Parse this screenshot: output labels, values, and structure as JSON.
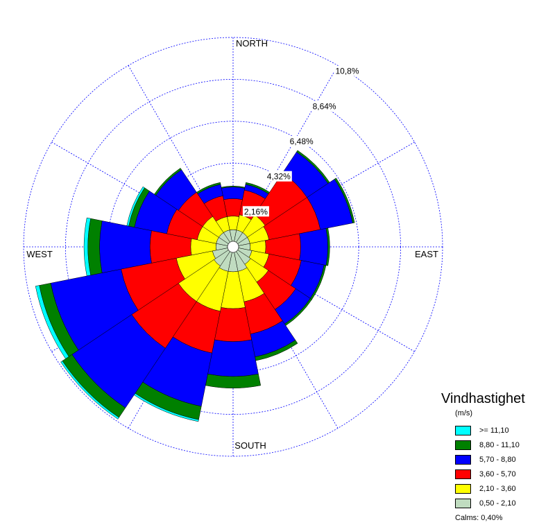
{
  "chart_data": {
    "type": "wind-rose",
    "directions": [
      "N",
      "NNE",
      "NE",
      "ENE",
      "E",
      "ESE",
      "SE",
      "SSE",
      "S",
      "SSW",
      "SW",
      "WSW",
      "W",
      "WNW",
      "NW",
      "NNW"
    ],
    "compass_labels": {
      "north": "NORTH",
      "east": "EAST",
      "south": "SOUTH",
      "west": "WEST"
    },
    "ring_ticks": [
      "2,16%",
      "4,32%",
      "6,48%",
      "8,64%",
      "10,8%"
    ],
    "ring_values": [
      2.16,
      4.32,
      6.48,
      8.64,
      10.8
    ],
    "r_max": 10.8,
    "legend_title": "Vindhastighet",
    "legend_unit": "(m/s)",
    "bins": [
      {
        "label": "0,50 - 2,10",
        "color": "#c0dcc0"
      },
      {
        "label": "2,10 - 3,60",
        "color": "#ffff00"
      },
      {
        "label": "3,60 - 5,70",
        "color": "#ff0000"
      },
      {
        "label": "5,70 - 8,80",
        "color": "#0000ff"
      },
      {
        "label": "8,80 - 11,10",
        "color": "#008000"
      },
      {
        "label": ">= 11,10",
        "color": "#00ffff"
      }
    ],
    "cumulative_percent": [
      [
        0.6,
        1.3,
        2.2,
        2.8,
        2.85,
        2.85
      ],
      [
        0.6,
        1.4,
        2.7,
        3.0,
        3.1,
        3.1
      ],
      [
        0.6,
        1.7,
        4.3,
        5.6,
        5.7,
        5.7
      ],
      [
        0.6,
        1.6,
        4.3,
        6.0,
        6.1,
        6.1
      ],
      [
        0.6,
        1.4,
        3.2,
        4.6,
        4.7,
        4.7
      ],
      [
        0.7,
        1.6,
        3.3,
        4.5,
        4.6,
        4.6
      ],
      [
        0.8,
        1.9,
        3.6,
        4.5,
        4.6,
        4.6
      ],
      [
        1.0,
        2.6,
        4.3,
        5.5,
        5.7,
        5.7
      ],
      [
        1.0,
        2.9,
        4.6,
        6.4,
        7.0,
        7.0
      ],
      [
        1.0,
        3.1,
        5.3,
        8.1,
        8.8,
        8.9
      ],
      [
        0.9,
        3.1,
        6.0,
        9.7,
        10.3,
        10.4
      ],
      [
        0.8,
        2.7,
        5.6,
        9.3,
        9.9,
        10.1
      ],
      [
        0.6,
        1.9,
        4.0,
        6.6,
        7.2,
        7.4
      ],
      [
        0.6,
        1.6,
        3.2,
        4.9,
        5.2,
        5.3
      ],
      [
        0.6,
        1.6,
        3.1,
        4.5,
        4.6,
        4.6
      ],
      [
        0.6,
        1.3,
        2.4,
        3.0,
        3.1,
        3.1
      ]
    ],
    "legend_items": [
      {
        "label": ">= 11,10",
        "color": "#00ffff"
      },
      {
        "label": "8,80 - 11,10",
        "color": "#008000"
      },
      {
        "label": "5,70 - 8,80",
        "color": "#0000ff"
      },
      {
        "label": "3,60 - 5,70",
        "color": "#ff0000"
      },
      {
        "label": "2,10 - 3,60",
        "color": "#ffff00"
      },
      {
        "label": "0,50 - 2,10",
        "color": "#c0dcc0"
      }
    ],
    "calms": "Calms: 0,40%",
    "grid": true,
    "grid_color": "#0000ff"
  }
}
